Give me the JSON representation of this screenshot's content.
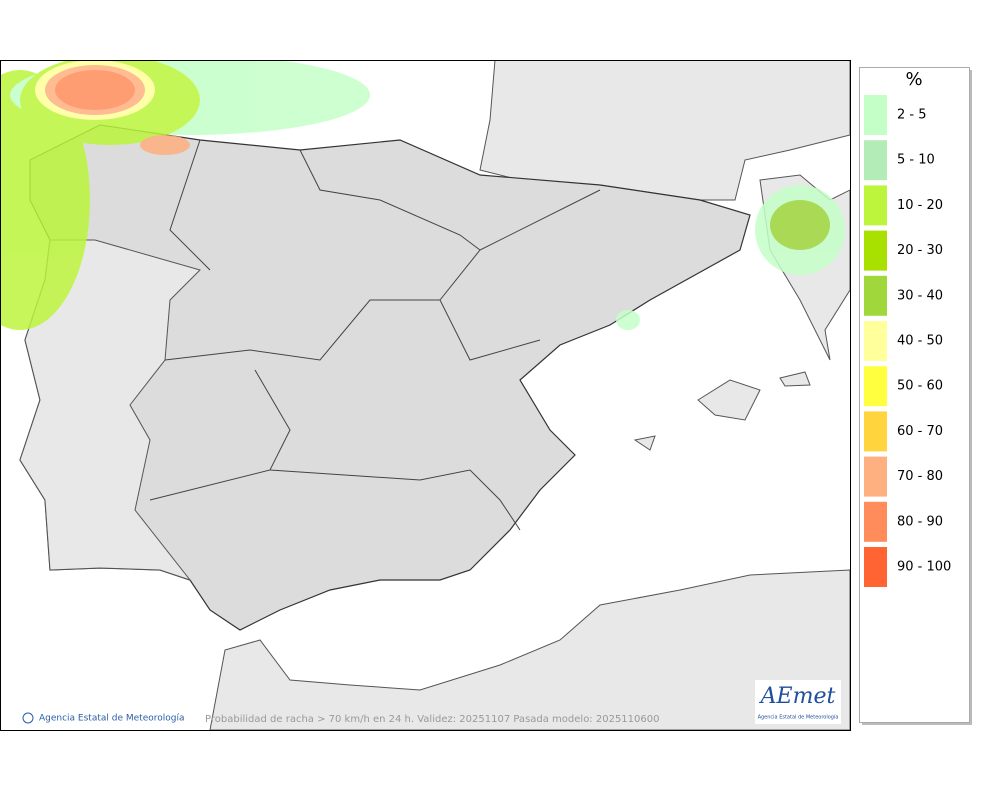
{
  "legend": {
    "title": "%",
    "items": [
      {
        "label": "2 - 5",
        "color": "#c4ffc8"
      },
      {
        "label": "5 - 10",
        "color": "#b4ecb8"
      },
      {
        "label": "10 - 20",
        "color": "#bcf53c"
      },
      {
        "label": "20 - 30",
        "color": "#a8e000"
      },
      {
        "label": "30 - 40",
        "color": "#a0d83c"
      },
      {
        "label": "40 - 50",
        "color": "#ffff9c"
      },
      {
        "label": "50 - 60",
        "color": "#ffff40"
      },
      {
        "label": "60 - 70",
        "color": "#ffd43c"
      },
      {
        "label": "70 - 80",
        "color": "#ffb080"
      },
      {
        "label": "80 - 90",
        "color": "#ff8c5a"
      },
      {
        "label": "90 - 100",
        "color": "#ff6432"
      }
    ]
  },
  "footer": {
    "credit": "Agencia Estatal de Meteorología",
    "caption": "Probabilidad de racha > 70 km/h en 24 h. Validez: 20251107 Pasada modelo: 2025110600"
  },
  "logo": {
    "name": "AEmet",
    "subtitle": "Agencia Estatal de Meteorología"
  }
}
